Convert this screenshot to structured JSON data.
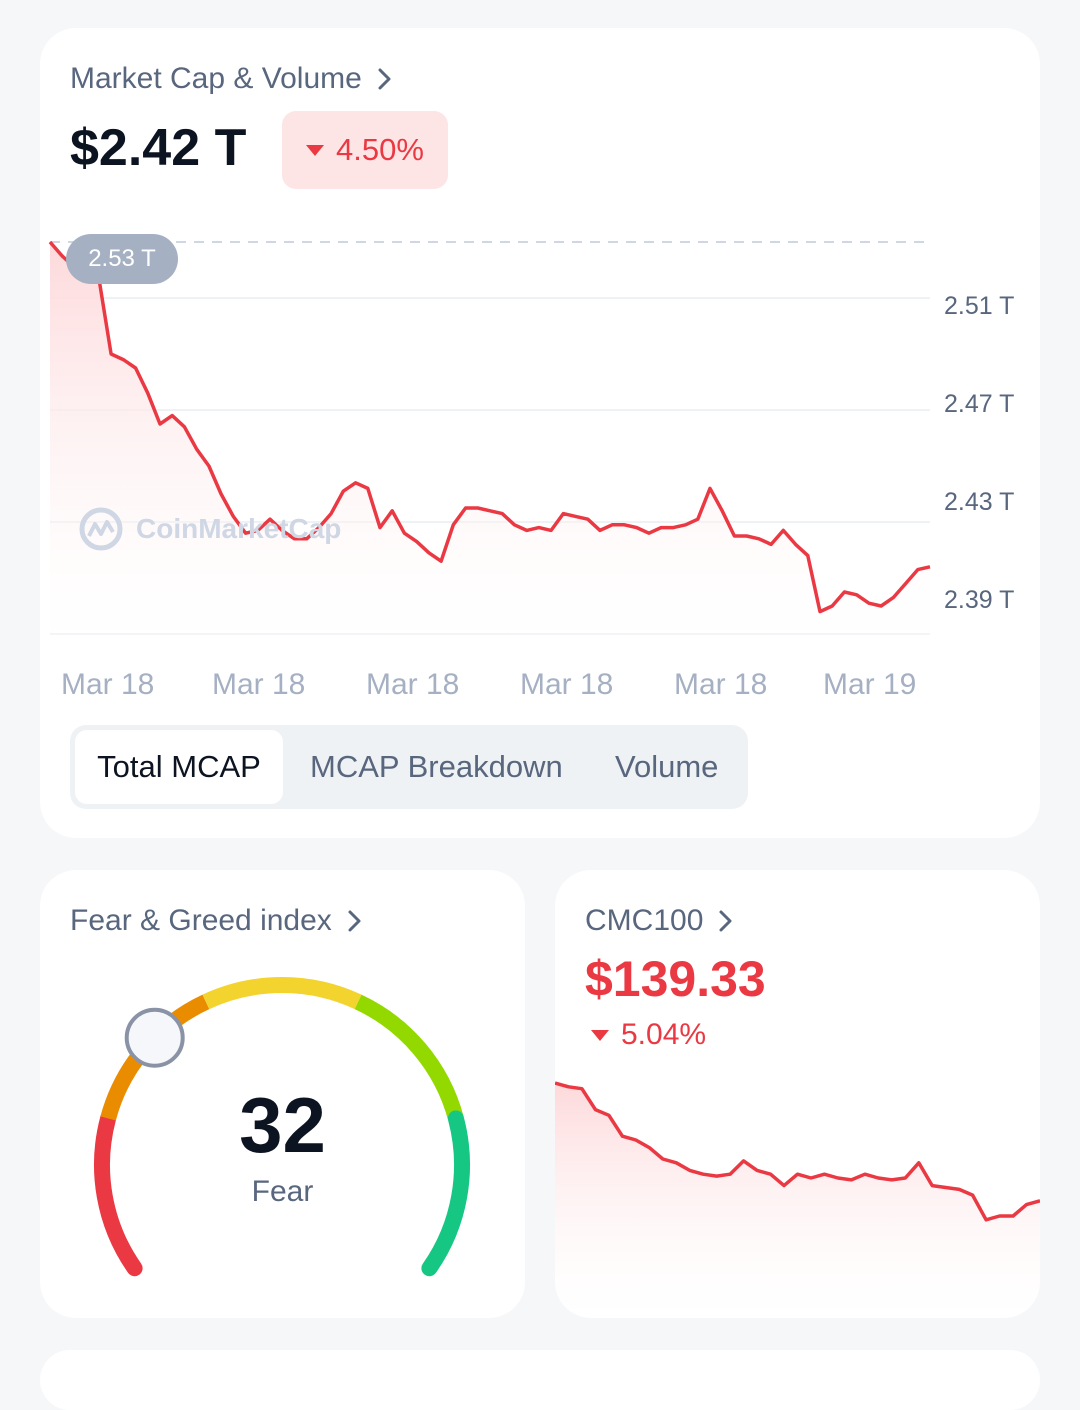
{
  "market_cap": {
    "title": "Market Cap & Volume",
    "value": "$2.42 T",
    "change": "4.50%",
    "change_direction": "down",
    "high_tag": "2.53 T",
    "watermark": "CoinMarketCap",
    "tabs": [
      {
        "label": "Total MCAP",
        "active": true
      },
      {
        "label": "MCAP Breakdown",
        "active": false
      },
      {
        "label": "Volume",
        "active": false
      }
    ],
    "colors": {
      "down": "#ea3943",
      "fill_top": "#fdd9db",
      "muted": "#a6b0c3"
    },
    "chart_data": {
      "type": "area",
      "y_ticks": [
        "2.51 T",
        "2.47 T",
        "2.43 T",
        "2.39 T"
      ],
      "x_ticks": [
        "Mar 18",
        "Mar 18",
        "Mar 18",
        "Mar 18",
        "Mar 18",
        "Mar 19"
      ],
      "ylim": [
        2.385,
        2.535
      ],
      "reference_line": 2.53,
      "series": [
        {
          "values": [
            2.53,
            2.525,
            2.521,
            2.522,
            2.517,
            2.49,
            2.488,
            2.485,
            2.476,
            2.465,
            2.468,
            2.464,
            2.456,
            2.45,
            2.44,
            2.432,
            2.426,
            2.427,
            2.431,
            2.427,
            2.424,
            2.424,
            2.428,
            2.433,
            2.441,
            2.444,
            2.442,
            2.428,
            2.434,
            2.426,
            2.423,
            2.419,
            2.416,
            2.429,
            2.435,
            2.435,
            2.434,
            2.433,
            2.429,
            2.427,
            2.428,
            2.427,
            2.433,
            2.432,
            2.431,
            2.427,
            2.429,
            2.429,
            2.428,
            2.426,
            2.428,
            2.428,
            2.429,
            2.431,
            2.442,
            2.434,
            2.425,
            2.425,
            2.424,
            2.422,
            2.427,
            2.422,
            2.418,
            2.398,
            2.4,
            2.405,
            2.404,
            2.401,
            2.4,
            2.403,
            2.408,
            2.413,
            2.414
          ]
        }
      ]
    }
  },
  "fear_greed": {
    "title": "Fear & Greed index",
    "value": "32",
    "label": "Fear",
    "score": 32,
    "colors": [
      "#ea3943",
      "#ea8c00",
      "#f3d42f",
      "#93d900",
      "#16c784"
    ]
  },
  "cmc100": {
    "title": "CMC100",
    "price": "$139.33",
    "change": "5.04%",
    "change_direction": "down",
    "chart_data": {
      "type": "area",
      "ylim": [
        0,
        1
      ],
      "series": [
        {
          "values": [
            1.0,
            0.98,
            0.97,
            0.86,
            0.83,
            0.72,
            0.7,
            0.66,
            0.6,
            0.58,
            0.54,
            0.52,
            0.51,
            0.52,
            0.59,
            0.54,
            0.52,
            0.46,
            0.52,
            0.5,
            0.52,
            0.5,
            0.49,
            0.52,
            0.5,
            0.49,
            0.5,
            0.58,
            0.46,
            0.45,
            0.44,
            0.41,
            0.28,
            0.3,
            0.3,
            0.36,
            0.38
          ]
        }
      ]
    }
  }
}
